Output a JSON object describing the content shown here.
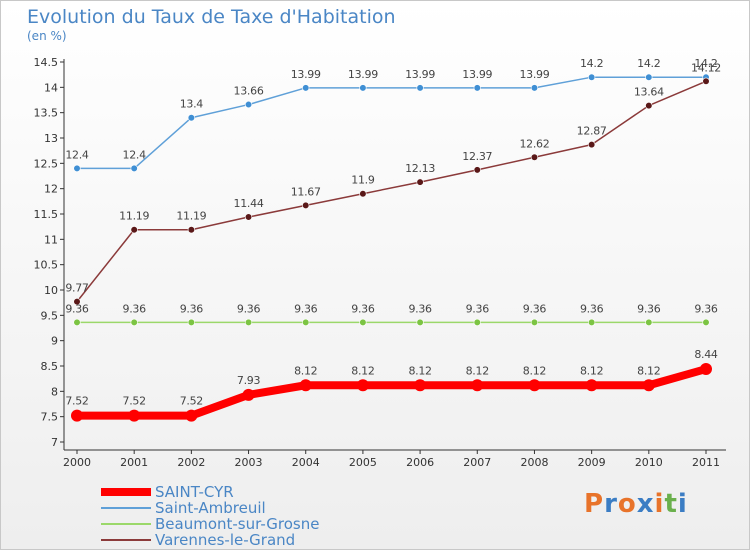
{
  "title": "Evolution du Taux de Taxe d'Habitation",
  "subtitle": "(en %)",
  "logo": {
    "text": "Proxiti",
    "letter_colors": [
      "#e8732a",
      "#3b7dc4",
      "#e8732a",
      "#3b7dc4",
      "#e8732a",
      "#6ab04c",
      "#3b7dc4"
    ]
  },
  "chart_data": {
    "type": "line",
    "title": "Evolution du Taux de Taxe d'Habitation",
    "ylabel": "(en %)",
    "xlabel": "",
    "ylim": [
      7,
      14.5
    ],
    "y_ticks": [
      "7",
      "7.5",
      "8",
      "8.5",
      "9",
      "9.5",
      "10",
      "10.5",
      "11",
      "11.5",
      "12",
      "12.5",
      "13",
      "13.5",
      "14",
      "14.5"
    ],
    "categories": [
      "2000",
      "2001",
      "2002",
      "2003",
      "2004",
      "2005",
      "2006",
      "2007",
      "2008",
      "2009",
      "2010",
      "2011"
    ],
    "grid": false,
    "legend": "bottom-left",
    "series": [
      {
        "name": "Saint-Ambreuil",
        "color": "#5fa0d8",
        "marker_color": "#3f8fd4",
        "thick": false,
        "values": [
          12.4,
          12.4,
          13.4,
          13.66,
          13.99,
          13.99,
          13.99,
          13.99,
          13.99,
          14.2,
          14.2,
          14.2
        ],
        "labels": [
          "12.4",
          "12.4",
          "13.4",
          "13.66",
          "13.99",
          "13.99",
          "13.99",
          "13.99",
          "13.99",
          "14.2",
          "14.2",
          "14.2"
        ]
      },
      {
        "name": "Varennes-le-Grand",
        "color": "#8b3a3a",
        "marker_color": "#5a1818",
        "thick": false,
        "values": [
          9.77,
          11.19,
          11.19,
          11.44,
          11.67,
          11.9,
          12.13,
          12.37,
          12.62,
          12.87,
          13.64,
          14.12
        ],
        "labels": [
          "9.77",
          "11.19",
          "11.19",
          "11.44",
          "11.67",
          "11.9",
          "12.13",
          "12.37",
          "12.62",
          "12.87",
          "13.64",
          "14.12"
        ]
      },
      {
        "name": "Beaumont-sur-Grosne",
        "color": "#9bd86a",
        "marker_color": "#7cc443",
        "thick": false,
        "values": [
          9.36,
          9.36,
          9.36,
          9.36,
          9.36,
          9.36,
          9.36,
          9.36,
          9.36,
          9.36,
          9.36,
          9.36
        ],
        "labels": [
          "9.36",
          "9.36",
          "9.36",
          "9.36",
          "9.36",
          "9.36",
          "9.36",
          "9.36",
          "9.36",
          "9.36",
          "9.36",
          "9.36"
        ]
      },
      {
        "name": "SAINT-CYR",
        "color": "#ff0000",
        "marker_color": "#ff0000",
        "thick": true,
        "values": [
          7.52,
          7.52,
          7.52,
          7.93,
          8.12,
          8.12,
          8.12,
          8.12,
          8.12,
          8.12,
          8.12,
          8.44
        ],
        "labels": [
          "7.52",
          "7.52",
          "7.52",
          "7.93",
          "8.12",
          "8.12",
          "8.12",
          "8.12",
          "8.12",
          "8.12",
          "8.12",
          "8.44"
        ]
      }
    ],
    "legend_order": [
      "SAINT-CYR",
      "Saint-Ambreuil",
      "Beaumont-sur-Grosne",
      "Varennes-le-Grand"
    ]
  }
}
